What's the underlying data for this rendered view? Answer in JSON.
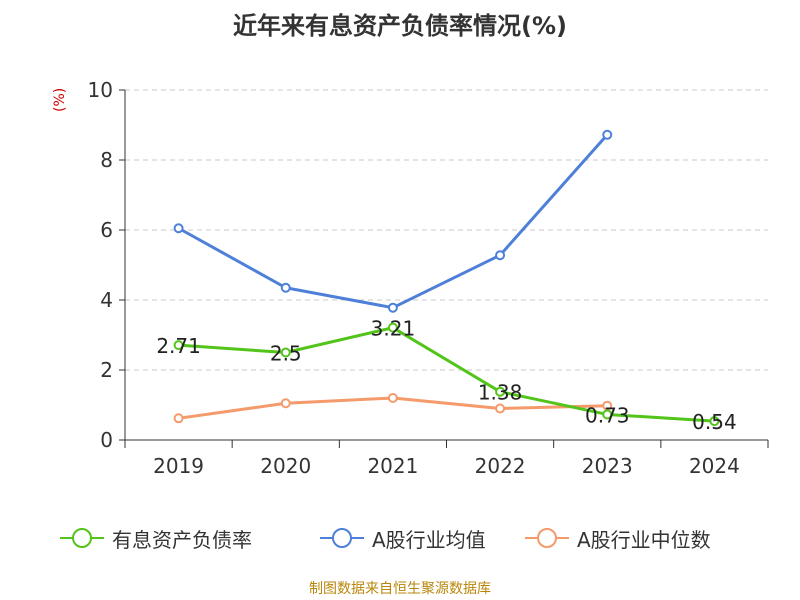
{
  "title": "近年来有息资产负债率情况(%)",
  "unit_label": "(%)",
  "source": "制图数据来自恒生聚源数据库",
  "chart_data": {
    "type": "line",
    "title": "近年来有息资产负债率情况(%)",
    "xlabel": "",
    "ylabel": "(%)",
    "categories": [
      "2019",
      "2020",
      "2021",
      "2022",
      "2023",
      "2024"
    ],
    "ylim": [
      0,
      10
    ],
    "yticks": [
      0,
      2,
      4,
      6,
      8,
      10
    ],
    "grid": true,
    "legend_position": "bottom",
    "series": [
      {
        "name": "有息资产负债率",
        "color": "#52c41a",
        "values": [
          2.71,
          2.5,
          3.21,
          1.38,
          0.73,
          0.54
        ],
        "labels": [
          "2.71",
          "2.5",
          "3.21",
          "1.38",
          "0.73",
          "0.54"
        ]
      },
      {
        "name": "A股行业均值",
        "color": "#4e7fd9",
        "values": [
          6.05,
          4.35,
          3.78,
          5.28,
          8.72,
          null
        ]
      },
      {
        "name": "A股行业中位数",
        "color": "#f59a6b",
        "values": [
          0.62,
          1.05,
          1.2,
          0.9,
          0.98,
          null
        ]
      }
    ]
  }
}
